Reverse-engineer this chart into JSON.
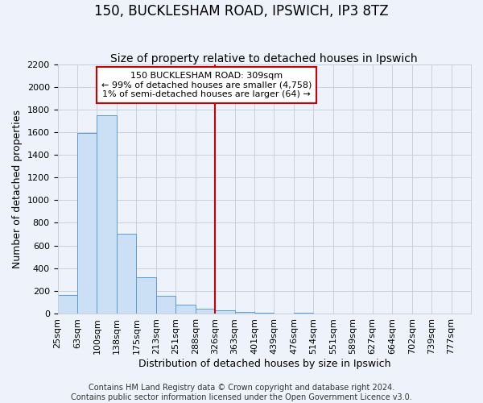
{
  "title": "150, BUCKLESHAM ROAD, IPSWICH, IP3 8TZ",
  "subtitle": "Size of property relative to detached houses in Ipswich",
  "xlabel": "Distribution of detached houses by size in Ipswich",
  "ylabel": "Number of detached properties",
  "footer_lines": [
    "Contains HM Land Registry data © Crown copyright and database right 2024.",
    "Contains public sector information licensed under the Open Government Licence v3.0."
  ],
  "bin_labels": [
    "25sqm",
    "63sqm",
    "100sqm",
    "138sqm",
    "175sqm",
    "213sqm",
    "251sqm",
    "288sqm",
    "326sqm",
    "363sqm",
    "401sqm",
    "439sqm",
    "476sqm",
    "514sqm",
    "551sqm",
    "589sqm",
    "627sqm",
    "664sqm",
    "702sqm",
    "739sqm",
    "777sqm"
  ],
  "bar_values": [
    160,
    1590,
    1750,
    700,
    320,
    155,
    80,
    45,
    25,
    15,
    10,
    0,
    10,
    0,
    0,
    0,
    0,
    0,
    0,
    0,
    0
  ],
  "bar_color": "#cce0f5",
  "bar_edge_color": "#5b9bd5",
  "vline_x_index": 8.0,
  "vline_color": "#cc0000",
  "annotation_line1": "150 BUCKLESHAM ROAD: 309sqm",
  "annotation_line2": "← 99% of detached houses are smaller (4,758)",
  "annotation_line3": "1% of semi-detached houses are larger (64) →",
  "annotation_box_edge": "#cc0000",
  "annotation_box_face": "#ffffff",
  "ylim": [
    0,
    2200
  ],
  "yticks": [
    0,
    200,
    400,
    600,
    800,
    1000,
    1200,
    1400,
    1600,
    1800,
    2000,
    2200
  ],
  "grid_color": "#c8d0de",
  "background_color": "#eef2fa",
  "title_fontsize": 12,
  "subtitle_fontsize": 10,
  "axis_label_fontsize": 9,
  "tick_fontsize": 8,
  "annotation_fontsize": 8,
  "footer_fontsize": 7
}
